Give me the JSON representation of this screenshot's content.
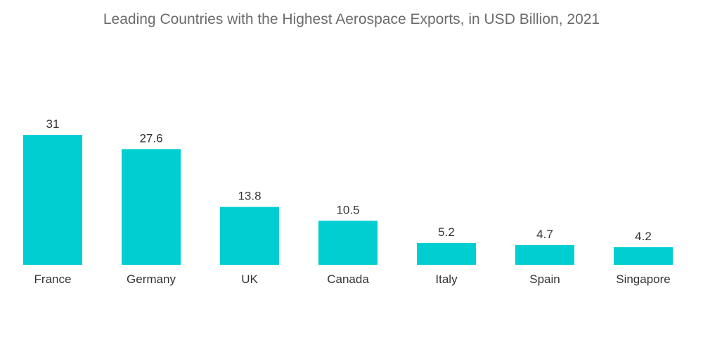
{
  "chart_data": {
    "type": "bar",
    "title": "Leading Countries with the Highest Aerospace Exports, in USD Billion, 2021",
    "categories": [
      "France",
      "Germany",
      "UK",
      "Canada",
      "Italy",
      "Spain",
      "Singapore"
    ],
    "values": [
      31,
      27.6,
      13.8,
      10.5,
      5.2,
      4.7,
      4.2
    ],
    "value_labels": [
      "31",
      "27.6",
      "13.8",
      "10.5",
      "5.2",
      "4.7",
      "4.2"
    ],
    "xlabel": "",
    "ylabel": "",
    "ylim": [
      0,
      31
    ],
    "grid": false,
    "legend": "none",
    "bar_color": "#00CED1"
  }
}
